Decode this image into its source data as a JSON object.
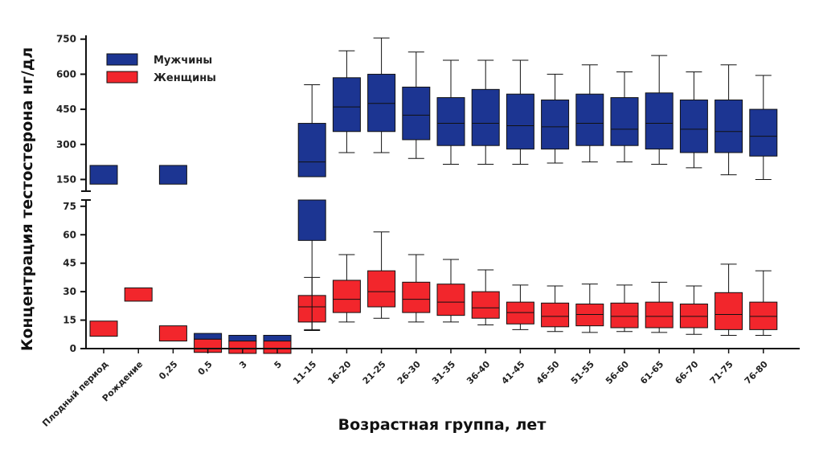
{
  "chart_data": {
    "type": "box",
    "ylabel": "Концентрация тестостерона нг/дл",
    "xlabel": "Возрастная группа, лет",
    "broken_y_axis": true,
    "upper_panel": {
      "ylim": [
        100,
        780
      ],
      "ticks": [
        150,
        300,
        450,
        600,
        750
      ]
    },
    "lower_panel": {
      "ylim": [
        0,
        80
      ],
      "ticks": [
        0,
        15,
        30,
        45,
        60,
        75
      ]
    },
    "grid": false,
    "legend_position": "top-left",
    "categories": [
      "Плодный период",
      "Рождение",
      "0,25",
      "0,5",
      "3",
      "5",
      "11-15",
      "16-20",
      "21-25",
      "26-30",
      "31-35",
      "36-40",
      "41-45",
      "46-50",
      "51-55",
      "56-60",
      "61-65",
      "66-70",
      "71-75",
      "76-80"
    ],
    "series": [
      {
        "name": "Мужчины",
        "color": "#1c3592",
        "boxes": [
          {
            "category": "Плодный период",
            "q1": 130,
            "q3": 210
          },
          null,
          {
            "category": "0,25",
            "q1": 130,
            "q3": 210
          },
          {
            "category": "0,5",
            "q1": 5,
            "q3": 8
          },
          {
            "category": "3",
            "q1": 4,
            "q3": 7
          },
          {
            "category": "5",
            "q1": 4,
            "q3": 7
          },
          {
            "category": "11-15",
            "min": 10,
            "q1": 57,
            "median": 225,
            "q3": 390,
            "max": 555
          },
          {
            "category": "16-20",
            "min": 265,
            "q1": 355,
            "median": 460,
            "q3": 585,
            "max": 700
          },
          {
            "category": "21-25",
            "min": 265,
            "q1": 355,
            "median": 475,
            "q3": 600,
            "max": 755
          },
          {
            "category": "26-30",
            "min": 240,
            "q1": 320,
            "median": 425,
            "q3": 545,
            "max": 695
          },
          {
            "category": "31-35",
            "min": 215,
            "q1": 295,
            "median": 390,
            "q3": 500,
            "max": 660
          },
          {
            "category": "36-40",
            "min": 215,
            "q1": 295,
            "median": 390,
            "q3": 535,
            "max": 660
          },
          {
            "category": "41-45",
            "min": 215,
            "q1": 280,
            "median": 380,
            "q3": 515,
            "max": 660
          },
          {
            "category": "46-50",
            "min": 220,
            "q1": 280,
            "median": 375,
            "q3": 490,
            "max": 600
          },
          {
            "category": "51-55",
            "min": 225,
            "q1": 295,
            "median": 390,
            "q3": 515,
            "max": 640
          },
          {
            "category": "56-60",
            "min": 225,
            "q1": 295,
            "median": 365,
            "q3": 500,
            "max": 610
          },
          {
            "category": "61-65",
            "min": 215,
            "q1": 280,
            "median": 390,
            "q3": 520,
            "max": 680
          },
          {
            "category": "66-70",
            "min": 200,
            "q1": 265,
            "median": 365,
            "q3": 490,
            "max": 610
          },
          {
            "category": "71-75",
            "min": 170,
            "q1": 265,
            "median": 355,
            "q3": 490,
            "max": 640
          },
          {
            "category": "76-80",
            "min": 150,
            "q1": 250,
            "median": 335,
            "q3": 450,
            "max": 595
          }
        ]
      },
      {
        "name": "Женщины",
        "color": "#f2262c",
        "boxes": [
          {
            "category": "Плодный период",
            "q1": 6.5,
            "q3": 14.5
          },
          {
            "category": "Рождение",
            "q1": 25,
            "q3": 32
          },
          {
            "category": "0,25",
            "q1": 4,
            "q3": 12
          },
          {
            "category": "0,5",
            "q1": -2,
            "q3": 5
          },
          {
            "category": "3",
            "q1": -3,
            "q3": 4
          },
          {
            "category": "5",
            "q1": -3,
            "q3": 4
          },
          {
            "category": "11-15",
            "min": 9.5,
            "q1": 14,
            "median": 22,
            "q3": 28,
            "max": 37.5
          },
          {
            "category": "16-20",
            "min": 14,
            "q1": 19,
            "median": 26,
            "q3": 36,
            "max": 49.5
          },
          {
            "category": "21-25",
            "min": 16,
            "q1": 22,
            "median": 30,
            "q3": 41,
            "max": 61.5
          },
          {
            "category": "26-30",
            "min": 14,
            "q1": 19,
            "median": 26,
            "q3": 35,
            "max": 49.5
          },
          {
            "category": "31-35",
            "min": 14,
            "q1": 17.5,
            "median": 24.5,
            "q3": 34,
            "max": 47
          },
          {
            "category": "36-40",
            "min": 12.5,
            "q1": 16,
            "median": 21.5,
            "q3": 30,
            "max": 41.5
          },
          {
            "category": "41-45",
            "min": 10,
            "q1": 13,
            "median": 19,
            "q3": 24.5,
            "max": 33.5
          },
          {
            "category": "46-50",
            "min": 9,
            "q1": 11.5,
            "median": 17,
            "q3": 24,
            "max": 33
          },
          {
            "category": "51-55",
            "min": 8.5,
            "q1": 12,
            "median": 18,
            "q3": 23.5,
            "max": 34
          },
          {
            "category": "56-60",
            "min": 9,
            "q1": 11,
            "median": 17,
            "q3": 24,
            "max": 33.5
          },
          {
            "category": "61-65",
            "min": 8.5,
            "q1": 11,
            "median": 17,
            "q3": 24.5,
            "max": 35
          },
          {
            "category": "66-70",
            "min": 7.5,
            "q1": 11,
            "median": 17,
            "q3": 23.5,
            "max": 33
          },
          {
            "category": "71-75",
            "min": 7,
            "q1": 10,
            "median": 18,
            "q3": 29.5,
            "max": 44.5
          },
          {
            "category": "76-80",
            "min": 7,
            "q1": 10,
            "median": 17,
            "q3": 24.5,
            "max": 41
          }
        ]
      }
    ]
  }
}
